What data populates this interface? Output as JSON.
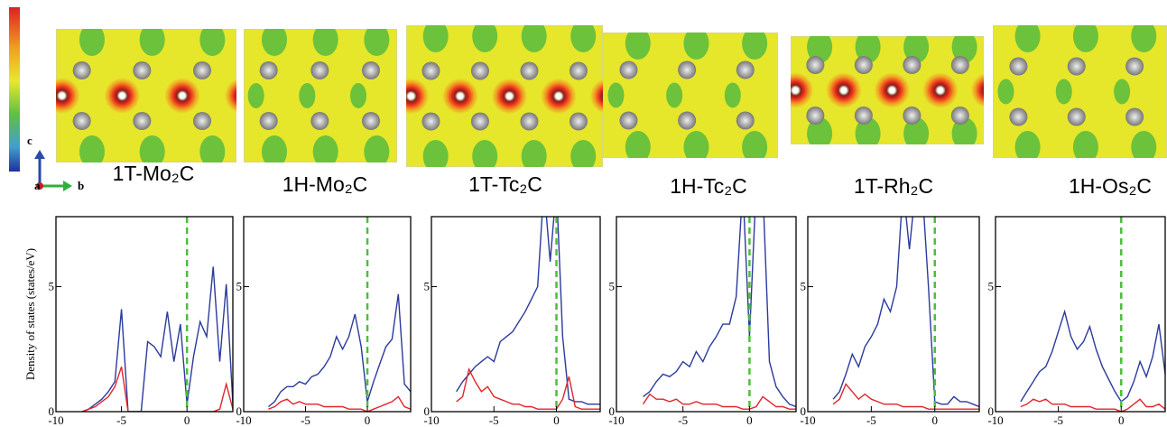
{
  "chart_data": [
    {
      "type": "line",
      "title": "1T-Mo₂C",
      "ylabel": "Density of states (states/eV)",
      "x": [
        -8,
        -7.5,
        -7,
        -6.5,
        -6,
        -5.5,
        -5,
        -4.5,
        -4,
        -3.5,
        -3,
        -2.5,
        -2,
        -1.5,
        -1,
        -0.5,
        0,
        0.5,
        1,
        1.5,
        2,
        2.5,
        3,
        3.5
      ],
      "series": [
        {
          "color": "#2b3a9c",
          "values": [
            0,
            0.1,
            0.3,
            0.5,
            0.8,
            1.2,
            4.1,
            0,
            0,
            0,
            2.8,
            2.6,
            2.2,
            4.0,
            2.0,
            3.5,
            0.3,
            2.2,
            3.6,
            3.0,
            5.8,
            2.0,
            5.1,
            0.3
          ]
        },
        {
          "color": "#e0262b",
          "values": [
            0,
            0.1,
            0.2,
            0.4,
            0.6,
            1.0,
            1.8,
            0,
            0,
            0,
            0,
            0,
            0,
            0,
            0,
            0,
            0,
            0,
            0,
            0,
            0,
            0.1,
            1.1,
            0.1
          ]
        }
      ],
      "xlim": [
        -10,
        3.5
      ],
      "ylim": [
        0,
        7.8
      ],
      "xticks": [
        -10,
        -5,
        0
      ],
      "yticks": [
        0,
        5
      ],
      "reference_line": {
        "x": 0,
        "color": "#4cbf3c"
      }
    },
    {
      "type": "line",
      "title": "1H-Mo₂C",
      "x": [
        -8,
        -7.5,
        -7,
        -6.5,
        -6,
        -5.5,
        -5,
        -4.5,
        -4,
        -3.5,
        -3,
        -2.5,
        -2,
        -1.5,
        -1,
        -0.5,
        0,
        0.5,
        1,
        1.5,
        2,
        2.5,
        3,
        3.5
      ],
      "series": [
        {
          "color": "#2b3a9c",
          "values": [
            0.2,
            0.4,
            0.8,
            1.0,
            1.0,
            1.2,
            1.1,
            1.4,
            1.5,
            1.8,
            2.2,
            3.0,
            2.5,
            3.0,
            3.9,
            2.6,
            0.4,
            1.2,
            1.9,
            2.6,
            2.9,
            4.7,
            1.1,
            0.8
          ]
        },
        {
          "color": "#e0262b",
          "values": [
            0.1,
            0.2,
            0.4,
            0.5,
            0.3,
            0.4,
            0.3,
            0.3,
            0.3,
            0.2,
            0.2,
            0.2,
            0.2,
            0.1,
            0.1,
            0.1,
            0,
            0.1,
            0.2,
            0.3,
            0.4,
            0.6,
            0.2,
            0.1
          ]
        }
      ],
      "xlim": [
        -10,
        3.5
      ],
      "ylim": [
        0,
        7.8
      ],
      "xticks": [
        -10,
        -5,
        0
      ],
      "yticks": [
        0,
        5
      ],
      "reference_line": {
        "x": 0,
        "color": "#4cbf3c"
      }
    },
    {
      "type": "line",
      "title": "1T-Tc₂C",
      "x": [
        -8,
        -7.5,
        -7,
        -6.5,
        -6,
        -5.5,
        -5,
        -4.5,
        -4,
        -3.5,
        -3,
        -2.5,
        -2,
        -1.5,
        -1,
        -0.5,
        0,
        0.5,
        1,
        1.5,
        2,
        2.5,
        3,
        3.5
      ],
      "series": [
        {
          "color": "#2b3a9c",
          "values": [
            0.8,
            1.2,
            1.5,
            1.8,
            2.0,
            2.2,
            2.0,
            2.8,
            3.0,
            3.2,
            3.6,
            4.0,
            4.5,
            5.0,
            9,
            6.0,
            9,
            3.0,
            0.5,
            0.4,
            0.4,
            0.3,
            0.3,
            0.3
          ]
        },
        {
          "color": "#e0262b",
          "values": [
            0.4,
            0.6,
            1.7,
            1.2,
            0.8,
            1.0,
            0.6,
            0.5,
            0.4,
            0.3,
            0.3,
            0.2,
            0.2,
            0.1,
            0.1,
            0.1,
            0.1,
            0.5,
            1.4,
            0.2,
            0.1,
            0.1,
            0.1,
            0.1
          ]
        }
      ],
      "xlim": [
        -10,
        3.5
      ],
      "ylim": [
        0,
        7.8
      ],
      "xticks": [
        -10,
        -5,
        0
      ],
      "yticks": [
        0,
        5
      ],
      "reference_line": {
        "x": 0,
        "color": "#4cbf3c"
      }
    },
    {
      "type": "line",
      "title": "1H-Tc₂C",
      "x": [
        -8,
        -7.5,
        -7,
        -6.5,
        -6,
        -5.5,
        -5,
        -4.5,
        -4,
        -3.5,
        -3,
        -2.5,
        -2,
        -1.5,
        -1,
        -0.5,
        0,
        0.5,
        1,
        1.5,
        2,
        2.5,
        3,
        3.5
      ],
      "series": [
        {
          "color": "#2b3a9c",
          "values": [
            0.6,
            0.8,
            1.2,
            1.5,
            1.4,
            1.6,
            2.0,
            1.8,
            2.4,
            2.0,
            2.6,
            3.0,
            3.5,
            3.5,
            4.6,
            9,
            3.0,
            9,
            9,
            2.0,
            1.0,
            0.6,
            0.3,
            0.2
          ]
        },
        {
          "color": "#e0262b",
          "values": [
            0.3,
            0.7,
            0.5,
            0.5,
            0.4,
            0.5,
            0.3,
            0.3,
            0.4,
            0.3,
            0.3,
            0.3,
            0.2,
            0.2,
            0.2,
            0.1,
            0.1,
            0.2,
            0.6,
            0.4,
            0.2,
            0.2,
            0.1,
            0.1
          ]
        }
      ],
      "xlim": [
        -10,
        3.5
      ],
      "ylim": [
        0,
        7.8
      ],
      "xticks": [
        -10,
        -5,
        0
      ],
      "yticks": [
        0,
        5
      ],
      "reference_line": {
        "x": 0,
        "color": "#4cbf3c"
      }
    },
    {
      "type": "line",
      "title": "1T-Rh₂C",
      "x": [
        -8,
        -7.5,
        -7,
        -6.5,
        -6,
        -5.5,
        -5,
        -4.5,
        -4,
        -3.5,
        -3,
        -2.5,
        -2,
        -1.5,
        -1,
        -0.5,
        0,
        0.5,
        1,
        1.5,
        2,
        2.5,
        3,
        3.5
      ],
      "series": [
        {
          "color": "#2b3a9c",
          "values": [
            0.5,
            0.8,
            1.5,
            2.3,
            1.8,
            2.6,
            3.0,
            3.5,
            4.5,
            4.0,
            5.0,
            9,
            6.5,
            9,
            9,
            5.0,
            0.4,
            0.3,
            0.3,
            0.6,
            0.4,
            0.4,
            0.3,
            0.2
          ]
        },
        {
          "color": "#e0262b",
          "values": [
            0.3,
            0.5,
            1.1,
            0.8,
            0.5,
            0.7,
            0.5,
            0.4,
            0.3,
            0.3,
            0.3,
            0.2,
            0.2,
            0.2,
            0.2,
            0.1,
            0.1,
            0.1,
            0.1,
            0.1,
            0.1,
            0.1,
            0.1,
            0.1
          ]
        }
      ],
      "xlim": [
        -10,
        3.5
      ],
      "ylim": [
        0,
        7.8
      ],
      "xticks": [
        -10,
        -5,
        0
      ],
      "yticks": [
        0,
        5
      ],
      "reference_line": {
        "x": 0,
        "color": "#4cbf3c"
      }
    },
    {
      "type": "line",
      "title": "1H-Os₂C",
      "x": [
        -8,
        -7.5,
        -7,
        -6.5,
        -6,
        -5.5,
        -5,
        -4.5,
        -4,
        -3.5,
        -3,
        -2.5,
        -2,
        -1.5,
        -1,
        -0.5,
        0,
        0.5,
        1,
        1.5,
        2,
        2.5,
        3,
        3.5
      ],
      "series": [
        {
          "color": "#2b3a9c",
          "values": [
            0.4,
            0.8,
            1.2,
            1.6,
            1.8,
            2.4,
            3.2,
            4.0,
            3.0,
            2.5,
            2.8,
            3.4,
            2.5,
            1.8,
            1.3,
            0.8,
            0.4,
            0.6,
            1.2,
            2.0,
            1.4,
            2.2,
            3.5,
            1.5
          ]
        },
        {
          "color": "#e0262b",
          "values": [
            0.2,
            0.3,
            0.5,
            0.4,
            0.5,
            0.3,
            0.3,
            0.3,
            0.2,
            0.2,
            0.2,
            0.2,
            0.1,
            0.1,
            0.1,
            0.1,
            0,
            0.1,
            0.3,
            0.5,
            0.2,
            0.2,
            0.3,
            0.1
          ]
        }
      ],
      "xlim": [
        -10,
        3.5
      ],
      "ylim": [
        0,
        7.8
      ],
      "xticks": [
        -10,
        -5,
        0
      ],
      "yticks": [
        0,
        5
      ],
      "reference_line": {
        "x": 0,
        "color": "#4cbf3c"
      }
    }
  ],
  "axes_legend": {
    "labels": [
      "c",
      "a",
      "b"
    ]
  }
}
